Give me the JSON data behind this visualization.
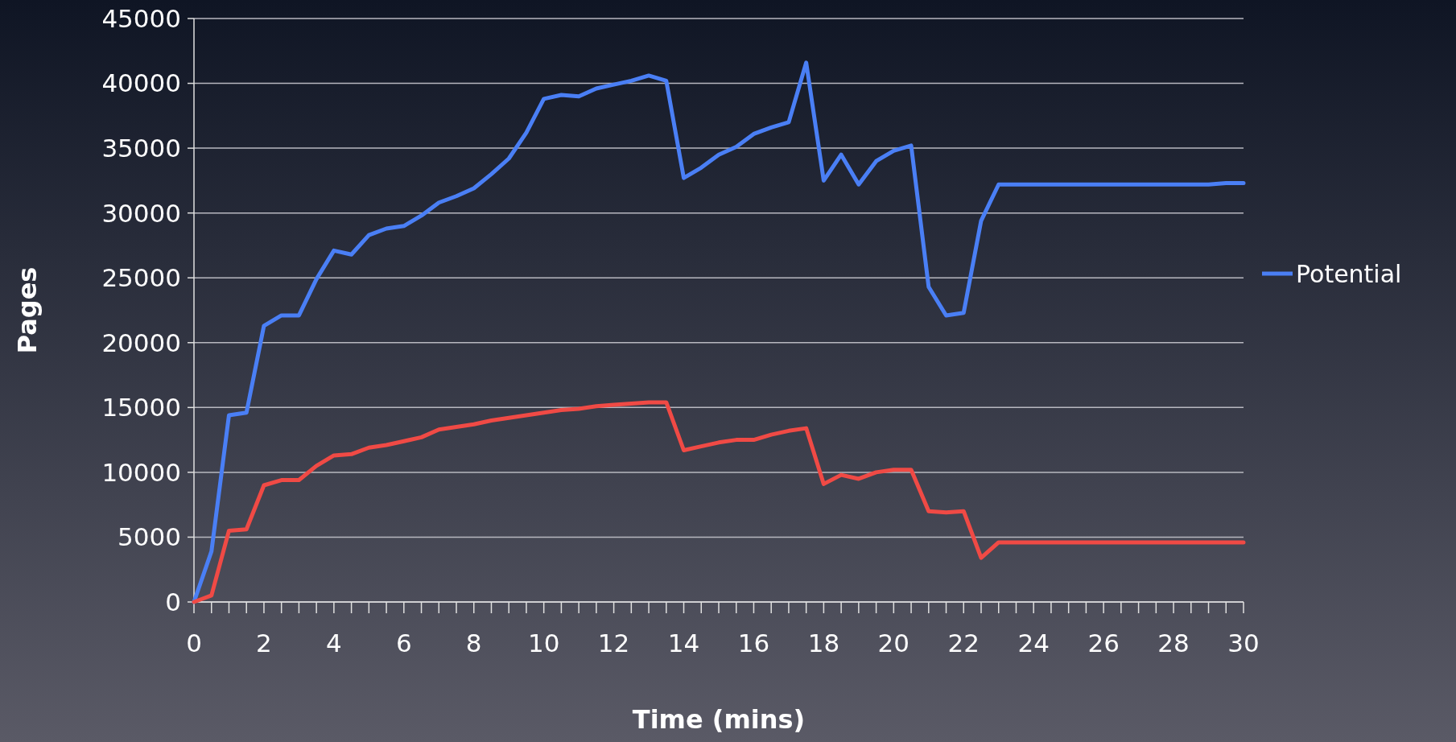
{
  "chart_data": {
    "type": "line",
    "xlabel": "Time (mins)",
    "ylabel": "Pages",
    "x": [
      0,
      0.5,
      1,
      1.5,
      2,
      2.5,
      3,
      3.5,
      4,
      4.5,
      5,
      5.5,
      6,
      6.5,
      7,
      7.5,
      8,
      8.5,
      9,
      9.5,
      10,
      10.5,
      11,
      11.5,
      12,
      12.5,
      13,
      13.5,
      14,
      14.5,
      15,
      15.5,
      16,
      16.5,
      17,
      17.5,
      18,
      18.5,
      19,
      19.5,
      20,
      20.5,
      21,
      21.5,
      22,
      22.5,
      23,
      23.5,
      24,
      24.5,
      25,
      25.5,
      26,
      26.5,
      27,
      27.5,
      28,
      28.5,
      29,
      29.5,
      30
    ],
    "series": [
      {
        "name": "Potential",
        "color": "#4a7ff5",
        "values": [
          0,
          3900,
          14400,
          14600,
          21300,
          22100,
          22100,
          24900,
          27100,
          26800,
          28300,
          28800,
          29000,
          29800,
          30800,
          31300,
          31900,
          33000,
          34200,
          36200,
          38800,
          39100,
          39000,
          39600,
          39900,
          40200,
          40600,
          40200,
          32700,
          33500,
          34500,
          35100,
          36100,
          36600,
          37000,
          41600,
          32500,
          34500,
          32200,
          34000,
          34800,
          35200,
          24300,
          22100,
          22300,
          29400,
          32200,
          32200,
          32200,
          32200,
          32200,
          32200,
          32200,
          32200,
          32200,
          32200,
          32200,
          32200,
          32200,
          32300,
          32300
        ]
      },
      {
        "color": "#f04a45",
        "values": [
          0,
          500,
          5500,
          5600,
          9000,
          9400,
          9400,
          10500,
          11300,
          11400,
          11900,
          12100,
          12400,
          12700,
          13300,
          13500,
          13700,
          14000,
          14200,
          14400,
          14600,
          14800,
          14900,
          15100,
          15200,
          15300,
          15400,
          15400,
          11700,
          12000,
          12300,
          12500,
          12500,
          12900,
          13200,
          13400,
          9100,
          9800,
          9500,
          10000,
          10200,
          10200,
          7000,
          6900,
          7000,
          3400,
          4600,
          4600,
          4600,
          4600,
          4600,
          4600,
          4600,
          4600,
          4600,
          4600,
          4600,
          4600,
          4600,
          4600,
          4600
        ]
      }
    ],
    "xlim": [
      0,
      30
    ],
    "xticks": [
      0,
      {
        "value": 0.5,
        "label": null
      },
      {
        "value": 1,
        "label": null
      },
      {
        "value": 1.5,
        "label": null
      },
      2,
      {
        "value": 2.5,
        "label": null
      },
      {
        "value": 3,
        "label": null
      },
      {
        "value": 3.5,
        "label": null
      },
      4,
      {
        "value": 4.5,
        "label": null
      },
      {
        "value": 5,
        "label": null
      },
      {
        "value": 5.5,
        "label": null
      },
      6,
      {
        "value": 6.5,
        "label": null
      },
      {
        "value": 7,
        "label": null
      },
      {
        "value": 7.5,
        "label": null
      },
      8,
      {
        "value": 8.5,
        "label": null
      },
      {
        "value": 9,
        "label": null
      },
      {
        "value": 9.5,
        "label": null
      },
      10,
      {
        "value": 10.5,
        "label": null
      },
      {
        "value": 11,
        "label": null
      },
      {
        "value": 11.5,
        "label": null
      },
      12,
      {
        "value": 12.5,
        "label": null
      },
      {
        "value": 13,
        "label": null
      },
      {
        "value": 13.5,
        "label": null
      },
      14,
      {
        "value": 14.5,
        "label": null
      },
      {
        "value": 15,
        "label": null
      },
      {
        "value": 15.5,
        "label": null
      },
      16,
      {
        "value": 16.5,
        "label": null
      },
      {
        "value": 17,
        "label": null
      },
      {
        "value": 17.5,
        "label": null
      },
      18,
      {
        "value": 18.5,
        "label": null
      },
      {
        "value": 19,
        "label": null
      },
      {
        "value": 19.5,
        "label": null
      },
      20,
      {
        "value": 20.5,
        "label": null
      },
      {
        "value": 21,
        "label": null
      },
      {
        "value": 21.5,
        "label": null
      },
      22,
      {
        "value": 22.5,
        "label": null
      },
      {
        "value": 23,
        "label": null
      },
      {
        "value": 23.5,
        "label": null
      },
      24,
      {
        "value": 24.5,
        "label": null
      },
      {
        "value": 25,
        "label": null
      },
      {
        "value": 25.5,
        "label": null
      },
      26,
      {
        "value": 26.5,
        "label": null
      },
      {
        "value": 27,
        "label": null
      },
      {
        "value": 27.5,
        "label": null
      },
      28,
      {
        "value": 28.5,
        "label": null
      },
      {
        "value": 29,
        "label": null
      },
      {
        "value": 29.5,
        "label": null
      },
      30
    ],
    "ylim": [
      0,
      45000
    ],
    "yticks": [
      0,
      5000,
      10000,
      15000,
      20000,
      25000,
      30000,
      35000,
      40000,
      45000
    ],
    "grid": "y",
    "legend": "right",
    "marker": "none",
    "line_style": "solid"
  }
}
